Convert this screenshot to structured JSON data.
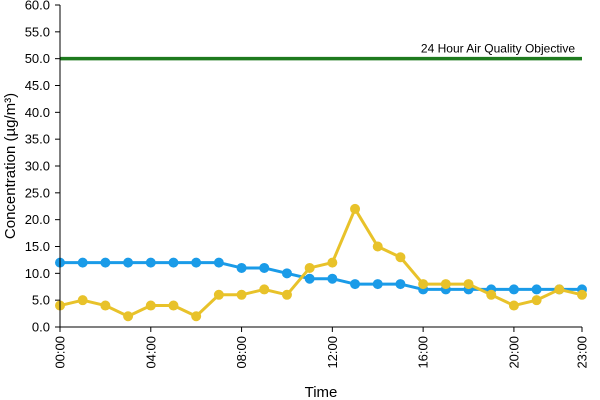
{
  "chart_data": {
    "type": "line",
    "xlabel": "Time",
    "ylabel": "Concentration (µg/m³)",
    "ylim": [
      0,
      60
    ],
    "y_ticks": [
      "0.0",
      "5.0",
      "10.0",
      "15.0",
      "20.0",
      "25.0",
      "30.0",
      "35.0",
      "40.0",
      "45.0",
      "50.0",
      "55.0",
      "60.0"
    ],
    "x_tick_labels": [
      "00:00",
      "04:00",
      "08:00",
      "12:00",
      "16:00",
      "20:00",
      "23:00"
    ],
    "x_tick_hours": [
      0,
      4,
      8,
      12,
      16,
      20,
      23
    ],
    "x_hours": [
      0,
      1,
      2,
      3,
      4,
      5,
      6,
      7,
      8,
      9,
      10,
      11,
      12,
      13,
      14,
      15,
      16,
      17,
      18,
      19,
      20,
      21,
      22,
      23
    ],
    "grid": false,
    "series": [
      {
        "color": "#1a9be8",
        "values": [
          12,
          12,
          12,
          12,
          12,
          12,
          12,
          12,
          11,
          11,
          10,
          9,
          9,
          8,
          8,
          8,
          7,
          7,
          7,
          7,
          7,
          7,
          7,
          7
        ]
      },
      {
        "color": "#e8c22a",
        "values": [
          4,
          5,
          4,
          2,
          4,
          4,
          2,
          6,
          6,
          7,
          6,
          11,
          12,
          22,
          15,
          13,
          8,
          8,
          8,
          6,
          4,
          5,
          7,
          6
        ]
      }
    ],
    "reference_line": {
      "value": 50,
      "label": "24 Hour Air Quality Objective",
      "color": "#1e7a1e"
    }
  }
}
